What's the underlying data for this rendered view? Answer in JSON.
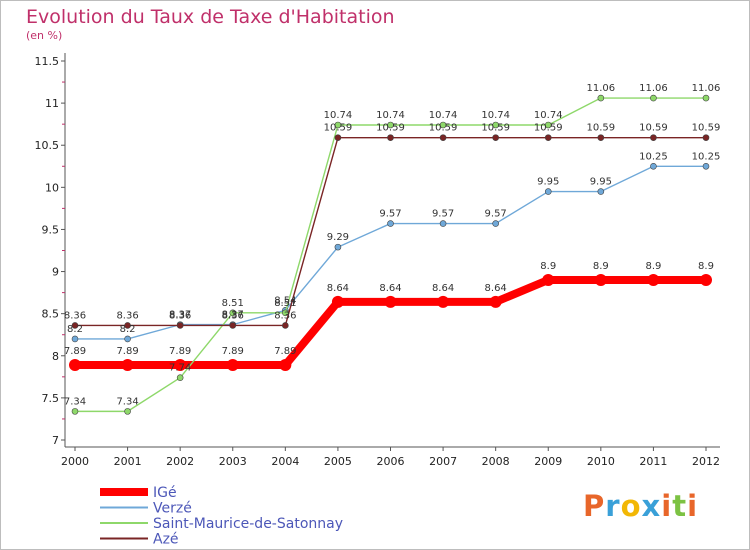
{
  "header": {
    "title": "Evolution du Taux de Taxe d'Habitation",
    "subtitle": "(en %)"
  },
  "logo": {
    "text": "Proxiti",
    "colors": [
      "#e8662a",
      "#3aa0d8",
      "#f2b705",
      "#3aa0d8",
      "#e8662a",
      "#7cc243",
      "#e8662a"
    ]
  },
  "chart_data": {
    "type": "line",
    "x": [
      "2000",
      "2001",
      "2002",
      "2003",
      "2004",
      "2005",
      "2006",
      "2007",
      "2008",
      "2009",
      "2010",
      "2011",
      "2012"
    ],
    "ylim": [
      7,
      11.5
    ],
    "yticks": [
      7,
      7.5,
      8,
      8.5,
      9,
      9.5,
      10,
      10.5,
      11,
      11.5
    ],
    "ytick_labels": [
      "7",
      "7.5",
      "8",
      "8.5",
      "9",
      "9.5",
      "10",
      "10.5",
      "11",
      "11.5"
    ],
    "grid": false,
    "legend_position": "bottom-left",
    "series": [
      {
        "name": "IGé",
        "color": "#ff0000",
        "width": 8,
        "marker": 6,
        "values": [
          7.89,
          7.89,
          7.89,
          7.89,
          7.89,
          8.64,
          8.64,
          8.64,
          8.64,
          8.9,
          8.9,
          8.9,
          8.9
        ],
        "labels": [
          "7.89",
          "7.89",
          "7.89",
          "7.89",
          "7.89",
          "8.64",
          "8.64",
          "8.64",
          "8.64",
          "8.9",
          "8.9",
          "8.9",
          "8.9"
        ]
      },
      {
        "name": "Verzé",
        "color": "#6fa8d8",
        "width": 1.4,
        "marker": 3,
        "values": [
          8.2,
          8.2,
          8.37,
          8.37,
          8.54,
          9.29,
          9.57,
          9.57,
          9.57,
          9.95,
          9.95,
          10.25,
          10.25
        ],
        "labels": [
          "8.2",
          "8.2",
          "8.37",
          "8.37",
          "8.54",
          "9.29",
          "9.57",
          "9.57",
          "9.57",
          "9.95",
          "9.95",
          "10.25",
          "10.25"
        ]
      },
      {
        "name": "Saint-Maurice-de-Satonnay",
        "color": "#8ed86a",
        "width": 1.4,
        "marker": 3,
        "values": [
          7.34,
          7.34,
          7.74,
          8.51,
          8.51,
          10.74,
          10.74,
          10.74,
          10.74,
          10.74,
          11.06,
          11.06,
          11.06
        ],
        "labels": [
          "7.34",
          "7.34",
          "7.74",
          "8.51",
          "8.51",
          "10.74",
          "10.74",
          "10.74",
          "10.74",
          "10.74",
          "11.06",
          "11.06",
          "11.06"
        ]
      },
      {
        "name": "Azé",
        "color": "#7a2525",
        "width": 1.4,
        "marker": 3,
        "values": [
          8.36,
          8.36,
          8.36,
          8.36,
          8.36,
          10.59,
          10.59,
          10.59,
          10.59,
          10.59,
          10.59,
          10.59,
          10.59
        ],
        "labels": [
          "8.36",
          "8.36",
          "8.36",
          "8.36",
          "8.36",
          "10.59",
          "10.59",
          "10.59",
          "10.59",
          "10.59",
          "10.59",
          "10.59",
          "10.59"
        ]
      }
    ]
  }
}
